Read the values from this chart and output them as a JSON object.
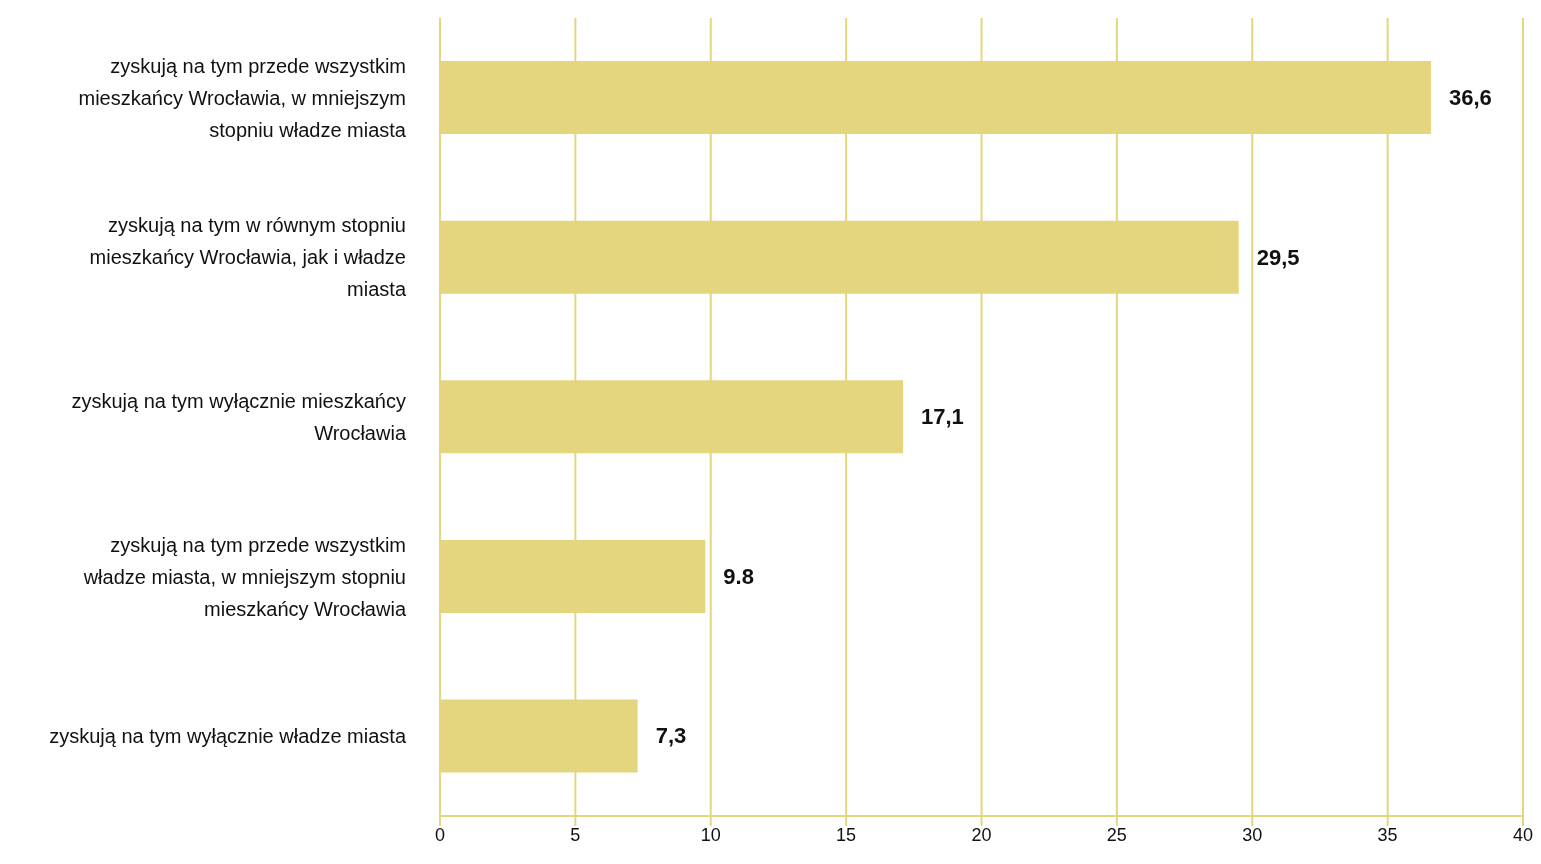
{
  "chart_data": {
    "type": "bar",
    "orientation": "horizontal",
    "categories": [
      "zyskują na tym przede wszystkim mieszkańcy Wrocławia, w mniejszym stopniu władze miasta",
      "zyskują na tym w równym stopniu mieszkańcy Wrocławia, jak i władze miasta",
      "zyskują na tym wyłącznie mieszkańcy Wrocławia",
      "zyskują na tym przede wszystkim władze miasta, w mniejszym stopniu mieszkańcy Wrocławia",
      "zyskują na tym wyłącznie władze miasta"
    ],
    "values": [
      36.6,
      29.5,
      17.1,
      9.8,
      7.3
    ],
    "value_labels": [
      "36,6",
      "29,5",
      "17,1",
      "9.8",
      "7,3"
    ],
    "color": "#e3d67f",
    "xlim": [
      0,
      40
    ],
    "xticks": [
      0,
      5,
      10,
      15,
      20,
      25,
      30,
      35,
      40
    ],
    "grid": "x"
  }
}
